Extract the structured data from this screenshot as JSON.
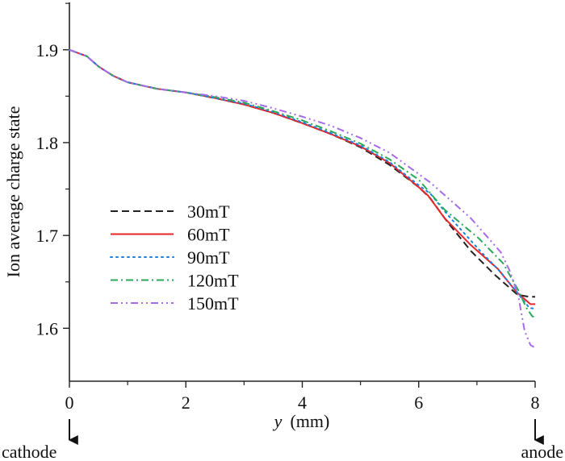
{
  "chart_data": {
    "type": "line",
    "title": "",
    "xlabel_italic": "y",
    "xlabel_unit": "(mm)",
    "ylabel": "Ion average charge state",
    "xlim": [
      0,
      8
    ],
    "ylim": [
      1.543,
      1.951
    ],
    "xticks": [
      "0",
      "2",
      "4",
      "6",
      "8"
    ],
    "yticks": [
      "1.6",
      "1.7",
      "1.8",
      "1.9"
    ],
    "grid": false,
    "legend_placement": "center-left",
    "annotations": {
      "left": "cathode",
      "right": "anode"
    },
    "series": [
      {
        "name": "30mT",
        "color": "#222222",
        "dash": "dashed",
        "x": [
          0,
          0.3,
          0.5,
          0.75,
          1,
          1.5,
          2,
          2.5,
          3,
          3.5,
          4,
          4.5,
          5,
          5.5,
          6,
          6.2,
          6.5,
          6.9,
          7.3,
          7.7,
          7.9,
          8
        ],
        "y": [
          1.9,
          1.893,
          1.882,
          1.872,
          1.865,
          1.858,
          1.854,
          1.848,
          1.841,
          1.832,
          1.821,
          1.809,
          1.795,
          1.776,
          1.752,
          1.74,
          1.714,
          1.683,
          1.658,
          1.636,
          1.634,
          1.634
        ]
      },
      {
        "name": "60mT",
        "color": "#e8262a",
        "dash": "solid",
        "x": [
          0,
          0.3,
          0.5,
          0.75,
          1,
          1.5,
          2,
          2.5,
          3,
          3.5,
          4,
          4.5,
          5,
          5.5,
          6,
          6.16,
          6.44,
          6.89,
          7.36,
          7.68,
          7.92,
          8
        ],
        "y": [
          1.9,
          1.893,
          1.882,
          1.872,
          1.865,
          1.858,
          1.854,
          1.848,
          1.841,
          1.832,
          1.821,
          1.809,
          1.796,
          1.778,
          1.752,
          1.743,
          1.719,
          1.69,
          1.664,
          1.639,
          1.626,
          1.626
        ]
      },
      {
        "name": "90mT",
        "color": "#1a7fe0",
        "dash": "dotted",
        "x": [
          0,
          0.3,
          0.5,
          0.75,
          1,
          1.5,
          2,
          2.5,
          3,
          3.5,
          4,
          4.5,
          5,
          5.5,
          6,
          6.2,
          6.5,
          7.06,
          7.4,
          7.7,
          7.9,
          8
        ],
        "y": [
          1.9,
          1.893,
          1.882,
          1.872,
          1.865,
          1.858,
          1.854,
          1.848,
          1.842,
          1.833,
          1.822,
          1.81,
          1.797,
          1.779,
          1.754,
          1.745,
          1.722,
          1.683,
          1.661,
          1.638,
          1.622,
          1.621
        ]
      },
      {
        "name": "120mT",
        "color": "#2aa85a",
        "dash": "dashdot",
        "x": [
          0,
          0.3,
          0.5,
          0.75,
          1,
          1.5,
          2,
          2.5,
          3,
          3.5,
          4,
          4.5,
          5,
          5.5,
          6,
          6.44,
          7.03,
          7.45,
          7.71,
          7.85,
          7.95,
          8
        ],
        "y": [
          1.9,
          1.893,
          1.882,
          1.872,
          1.865,
          1.858,
          1.854,
          1.849,
          1.843,
          1.834,
          1.824,
          1.812,
          1.799,
          1.782,
          1.76,
          1.728,
          1.697,
          1.67,
          1.641,
          1.622,
          1.613,
          1.612
        ]
      },
      {
        "name": "150mT",
        "color": "#a66be8",
        "dash": "dashdotdot",
        "x": [
          0,
          0.3,
          0.5,
          0.75,
          1,
          1.5,
          2,
          2.5,
          3,
          3.5,
          4,
          4.5,
          5,
          5.5,
          6.2,
          6.89,
          7.41,
          7.57,
          7.71,
          7.82,
          7.92,
          8
        ],
        "y": [
          1.9,
          1.893,
          1.882,
          1.872,
          1.865,
          1.858,
          1.854,
          1.85,
          1.845,
          1.837,
          1.828,
          1.818,
          1.805,
          1.789,
          1.757,
          1.719,
          1.682,
          1.661,
          1.635,
          1.597,
          1.582,
          1.579
        ]
      }
    ]
  }
}
